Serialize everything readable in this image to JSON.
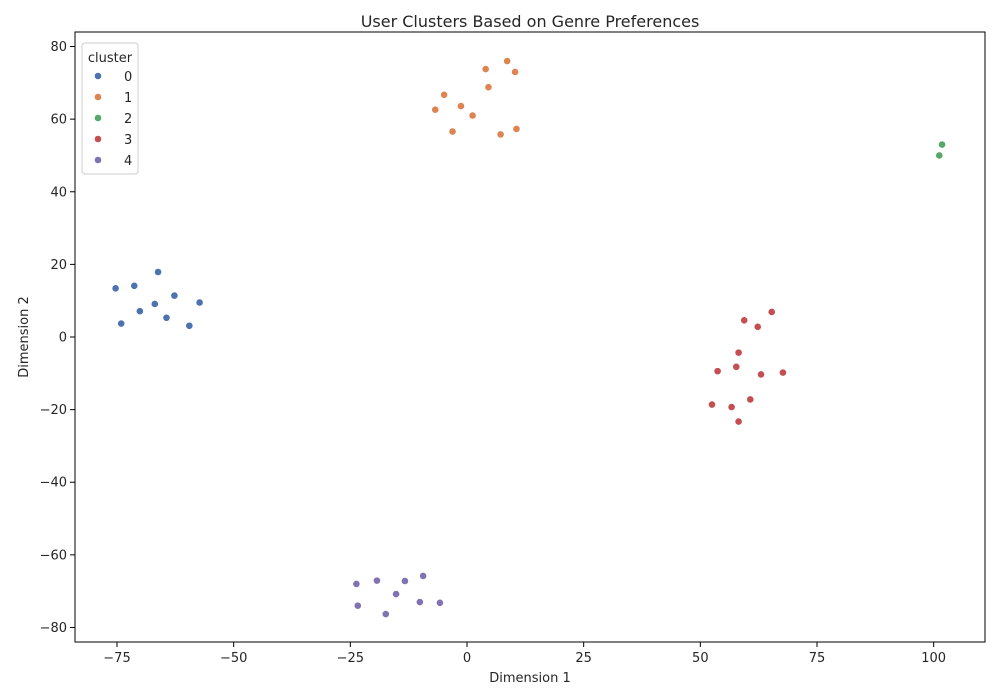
{
  "chart_data": {
    "type": "scatter",
    "title": "User Clusters Based on Genre Preferences",
    "xlabel": "Dimension 1",
    "ylabel": "Dimension 2",
    "xlim": [
      -84,
      111
    ],
    "ylim": [
      -84,
      84
    ],
    "xticks": [
      -75,
      -50,
      -25,
      0,
      25,
      50,
      75,
      100
    ],
    "yticks": [
      -80,
      -60,
      -40,
      -20,
      0,
      20,
      40,
      60,
      80
    ],
    "xtick_labels": [
      "−75",
      "−50",
      "−25",
      "0",
      "25",
      "50",
      "75",
      "100"
    ],
    "ytick_labels": [
      "−80",
      "−60",
      "−40",
      "−20",
      "0",
      "20",
      "40",
      "60",
      "80"
    ],
    "grid": false,
    "legend": {
      "title": "cluster",
      "placement": "top-left"
    },
    "series": [
      {
        "name": "0",
        "color": "#4c72b0",
        "points": [
          [
            -66.2,
            17.9
          ],
          [
            -75.3,
            13.4
          ],
          [
            -71.3,
            14.1
          ],
          [
            -62.7,
            11.4
          ],
          [
            -66.9,
            9.1
          ],
          [
            -57.3,
            9.5
          ],
          [
            -70.1,
            7.1
          ],
          [
            -64.4,
            5.3
          ],
          [
            -74.1,
            3.7
          ],
          [
            -59.5,
            3.1
          ]
        ]
      },
      {
        "name": "1",
        "color": "#dd8452",
        "points": [
          [
            8.6,
            76.0
          ],
          [
            4.0,
            73.8
          ],
          [
            10.3,
            73.0
          ],
          [
            4.6,
            68.8
          ],
          [
            -4.9,
            66.7
          ],
          [
            -1.3,
            63.6
          ],
          [
            -6.8,
            62.6
          ],
          [
            1.2,
            61.0
          ],
          [
            -3.1,
            56.6
          ],
          [
            10.6,
            57.3
          ],
          [
            7.2,
            55.8
          ]
        ]
      },
      {
        "name": "2",
        "color": "#55a868",
        "points": [
          [
            101.8,
            53.0
          ],
          [
            101.2,
            50.0
          ]
        ]
      },
      {
        "name": "3",
        "color": "#c44e52",
        "points": [
          [
            65.3,
            6.9
          ],
          [
            59.4,
            4.6
          ],
          [
            62.3,
            2.8
          ],
          [
            58.2,
            -4.3
          ],
          [
            57.7,
            -8.2
          ],
          [
            53.7,
            -9.4
          ],
          [
            63.0,
            -10.3
          ],
          [
            67.7,
            -9.8
          ],
          [
            60.7,
            -17.2
          ],
          [
            52.5,
            -18.6
          ],
          [
            56.7,
            -19.3
          ],
          [
            58.2,
            -23.3
          ]
        ]
      },
      {
        "name": "4",
        "color": "#8172b3",
        "points": [
          [
            -9.4,
            -65.8
          ],
          [
            -19.3,
            -67.1
          ],
          [
            -13.3,
            -67.2
          ],
          [
            -23.7,
            -68.0
          ],
          [
            -15.2,
            -70.8
          ],
          [
            -10.1,
            -73.0
          ],
          [
            -5.8,
            -73.2
          ],
          [
            -23.4,
            -74.0
          ],
          [
            -17.4,
            -76.3
          ]
        ]
      }
    ]
  }
}
